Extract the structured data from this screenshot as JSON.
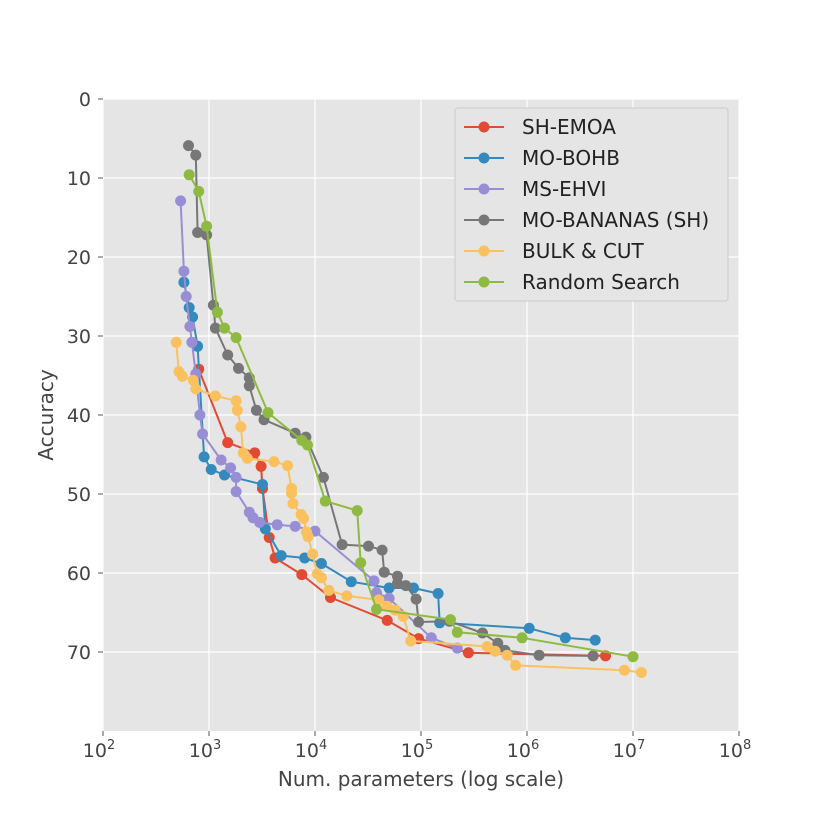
{
  "chart_data": {
    "type": "line",
    "title": "",
    "xlabel": "Num. parameters (log scale)",
    "ylabel": "Accuracy",
    "x_scale": "log",
    "xlim": [
      100,
      100000000
    ],
    "ylim": [
      0,
      80
    ],
    "y_inverted": true,
    "grid": true,
    "background": "#e5e5e5",
    "legend_position": "top-right",
    "x_ticks": [
      {
        "base": "10",
        "exp": "2"
      },
      {
        "base": "10",
        "exp": "3"
      },
      {
        "base": "10",
        "exp": "4"
      },
      {
        "base": "10",
        "exp": "5"
      },
      {
        "base": "10",
        "exp": "6"
      },
      {
        "base": "10",
        "exp": "7"
      },
      {
        "base": "10",
        "exp": "8"
      }
    ],
    "y_ticks": [
      "0",
      "10",
      "20",
      "30",
      "40",
      "50",
      "60",
      "70"
    ],
    "series": [
      {
        "name": "SH-EMOA",
        "color": "#e24a33",
        "points": [
          [
            800,
            34.2
          ],
          [
            1500,
            43.5
          ],
          [
            2700,
            44.8
          ],
          [
            3100,
            46.5
          ],
          [
            3200,
            49.3
          ],
          [
            3700,
            55.5
          ],
          [
            4200,
            58.1
          ],
          [
            7500,
            60.2
          ],
          [
            14000,
            63.1
          ],
          [
            48000,
            66.0
          ],
          [
            95000,
            68.3
          ],
          [
            280000,
            70.1
          ],
          [
            5500000,
            70.5
          ]
        ]
      },
      {
        "name": "MO-BOHB",
        "color": "#348abd",
        "points": [
          [
            580,
            23.2
          ],
          [
            650,
            26.4
          ],
          [
            700,
            27.6
          ],
          [
            780,
            31.3
          ],
          [
            900,
            45.3
          ],
          [
            1050,
            46.9
          ],
          [
            1400,
            47.6
          ],
          [
            3200,
            48.8
          ],
          [
            3400,
            54.4
          ],
          [
            4800,
            57.8
          ],
          [
            8000,
            58.1
          ],
          [
            11500,
            58.8
          ],
          [
            22000,
            61.1
          ],
          [
            50000,
            61.9
          ],
          [
            85000,
            61.9
          ],
          [
            145000,
            62.6
          ],
          [
            150000,
            66.3
          ],
          [
            1050000,
            67.0
          ],
          [
            2300000,
            68.2
          ],
          [
            4400000,
            68.5
          ]
        ]
      },
      {
        "name": "MS-EHVI",
        "color": "#988ed5",
        "points": [
          [
            540,
            12.9
          ],
          [
            580,
            21.8
          ],
          [
            610,
            25.0
          ],
          [
            660,
            28.8
          ],
          [
            690,
            30.8
          ],
          [
            750,
            34.8
          ],
          [
            820,
            40.0
          ],
          [
            870,
            42.4
          ],
          [
            1300,
            45.7
          ],
          [
            1600,
            46.7
          ],
          [
            1800,
            47.9
          ],
          [
            1800,
            49.7
          ],
          [
            2400,
            52.3
          ],
          [
            2600,
            53.0
          ],
          [
            3000,
            53.6
          ],
          [
            4400,
            53.9
          ],
          [
            6500,
            54.1
          ],
          [
            10000,
            54.7
          ],
          [
            36000,
            61.0
          ],
          [
            38000,
            62.5
          ],
          [
            50000,
            63.2
          ],
          [
            125000,
            68.2
          ],
          [
            220000,
            69.5
          ]
        ]
      },
      {
        "name": "MO-BANANAS (SH)",
        "color": "#777777",
        "points": [
          [
            640,
            5.9
          ],
          [
            750,
            7.1
          ],
          [
            780,
            16.9
          ],
          [
            950,
            17.2
          ],
          [
            1100,
            26.1
          ],
          [
            1150,
            29.0
          ],
          [
            1500,
            32.4
          ],
          [
            1900,
            34.1
          ],
          [
            2400,
            35.3
          ],
          [
            2400,
            36.3
          ],
          [
            2800,
            39.4
          ],
          [
            3300,
            40.6
          ],
          [
            6500,
            42.3
          ],
          [
            8200,
            42.8
          ],
          [
            12000,
            47.9
          ],
          [
            18000,
            56.4
          ],
          [
            32000,
            56.6
          ],
          [
            43000,
            57.1
          ],
          [
            45000,
            59.9
          ],
          [
            60000,
            60.4
          ],
          [
            60000,
            61.3
          ],
          [
            72000,
            61.6
          ],
          [
            90000,
            63.3
          ],
          [
            95000,
            66.2
          ],
          [
            185000,
            66.1
          ],
          [
            380000,
            67.6
          ],
          [
            530000,
            68.9
          ],
          [
            620000,
            69.8
          ],
          [
            1300000,
            70.4
          ],
          [
            4200000,
            70.5
          ]
        ]
      },
      {
        "name": "BULK & CUT",
        "color": "#fbc15e",
        "points": [
          [
            490,
            30.8
          ],
          [
            520,
            34.5
          ],
          [
            560,
            35.1
          ],
          [
            710,
            35.6
          ],
          [
            750,
            36.7
          ],
          [
            1150,
            37.6
          ],
          [
            1800,
            38.2
          ],
          [
            1850,
            39.4
          ],
          [
            2000,
            41.5
          ],
          [
            2100,
            44.8
          ],
          [
            2300,
            45.5
          ],
          [
            4100,
            45.9
          ],
          [
            5500,
            46.4
          ],
          [
            6000,
            49.3
          ],
          [
            6000,
            49.9
          ],
          [
            6200,
            51.2
          ],
          [
            7400,
            52.6
          ],
          [
            7800,
            53.1
          ],
          [
            8300,
            54.8
          ],
          [
            8600,
            55.4
          ],
          [
            9500,
            57.6
          ],
          [
            10500,
            60.1
          ],
          [
            11500,
            60.6
          ],
          [
            13500,
            62.2
          ],
          [
            20000,
            62.9
          ],
          [
            40000,
            63.4
          ],
          [
            48000,
            64.2
          ],
          [
            57000,
            64.7
          ],
          [
            68000,
            65.5
          ],
          [
            80000,
            68.6
          ],
          [
            420000,
            69.3
          ],
          [
            500000,
            69.9
          ],
          [
            650000,
            70.4
          ],
          [
            780000,
            71.7
          ],
          [
            8300000,
            72.3
          ],
          [
            12000000,
            72.6
          ]
        ]
      },
      {
        "name": "Random Search",
        "color": "#8eba42",
        "points": [
          [
            650,
            9.6
          ],
          [
            800,
            11.7
          ],
          [
            950,
            16.1
          ],
          [
            1200,
            27.0
          ],
          [
            1400,
            29.0
          ],
          [
            1800,
            30.2
          ],
          [
            3600,
            39.7
          ],
          [
            7500,
            43.2
          ],
          [
            8500,
            43.8
          ],
          [
            12500,
            50.9
          ],
          [
            25000,
            52.1
          ],
          [
            27000,
            58.7
          ],
          [
            38000,
            64.6
          ],
          [
            190000,
            65.9
          ],
          [
            220000,
            67.5
          ],
          [
            900000,
            68.2
          ],
          [
            10000000,
            70.6
          ]
        ]
      }
    ]
  }
}
